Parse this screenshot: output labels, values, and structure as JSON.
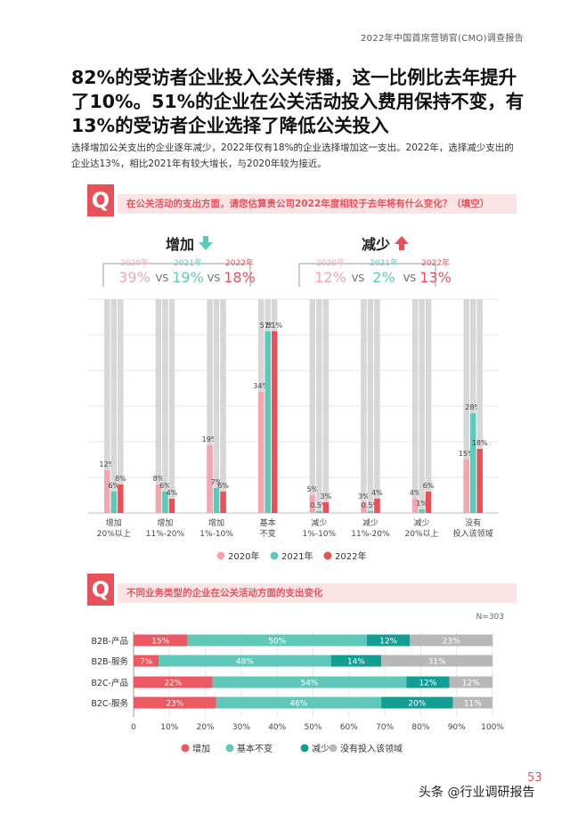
{
  "header": {
    "report_name": "2022年中国首席营销官(CMO)调查报告"
  },
  "headline": "82%的受访者企业投入公关传播，这一比例比去年提升了10%。51%的企业在公关活动投入费用保持不变，有13%的受访者企业选择了降低公关投入",
  "intro": "选择增加公关支出的企业逐年减少，2022年仅有18%的企业选择增加这一支出。2022年，选择减少支出的企业达13%，相比2021年有较大增长，与2020年较为接近。",
  "question1": {
    "badge": "Q",
    "text": "在公关活动的支出方面，请您估算贵公司2022年度相较于去年将有什么变化？（填空）"
  },
  "question2": {
    "badge": "Q",
    "text": "不同业务类型的企业在公关活动方面的支出变化"
  },
  "colors": {
    "y2020": "#f4a5ad",
    "y2021": "#5dc9bb",
    "y2022": "#e9515a",
    "track": "#d7d7d7",
    "accent": "#e9515a",
    "s_increase": "#ec5962",
    "s_same": "#5fc8b8",
    "s_decrease": "#139e94",
    "s_none": "#b8b8b8",
    "arrow_down": "#5dc9bb",
    "arrow_up": "#e9515a"
  },
  "summary": {
    "increase": {
      "title": "增加",
      "arrow_icon": "arrow-down-icon",
      "years": [
        "2020年",
        "2021年",
        "2022年"
      ],
      "values": [
        "39%",
        "19%",
        "18%"
      ],
      "vs": "VS"
    },
    "decrease": {
      "title": "减少",
      "arrow_icon": "arrow-up-icon",
      "years": [
        "2020年",
        "2021年",
        "2022年"
      ],
      "values": [
        "12%",
        "2%",
        "13%"
      ],
      "vs": "VS"
    }
  },
  "chart_data": [
    {
      "type": "bar",
      "categories": [
        [
          "增加",
          "20%以上"
        ],
        [
          "增加",
          "11%-20%"
        ],
        [
          "增加",
          "1%-10%"
        ],
        [
          "基本",
          "不变"
        ],
        [
          "减少",
          "1%-10%"
        ],
        [
          "减少",
          "11%-20%"
        ],
        [
          "减少",
          "20%以上"
        ],
        [
          "没有",
          "投入该领域"
        ]
      ],
      "series": [
        {
          "name": "2020年",
          "values": [
            12,
            8,
            19,
            34,
            5,
            3,
            4,
            15
          ],
          "labels": [
            "12%",
            "8%",
            "19%",
            "34%",
            "5%",
            "3%",
            "4%",
            "15%"
          ]
        },
        {
          "name": "2021年",
          "values": [
            6,
            6,
            7,
            51,
            0.5,
            0.5,
            1,
            28
          ],
          "labels": [
            "6%",
            "6%",
            "7%",
            "51%",
            "0.5%",
            "0.5%",
            "1%",
            "28%"
          ]
        },
        {
          "name": "2022年",
          "values": [
            8,
            4,
            6,
            51,
            3,
            4,
            6,
            18
          ],
          "labels": [
            "8%",
            "4%",
            "6%",
            "51%",
            "3%",
            "4%",
            "6%",
            "18%"
          ]
        }
      ],
      "ylim": [
        0,
        60
      ],
      "grid": true,
      "legend": "bottom"
    },
    {
      "type": "bar",
      "orientation": "horizontal",
      "stacked": true,
      "note": "N=303",
      "categories": [
        "B2B-产品",
        "B2B-服务",
        "B2C-产品",
        "B2C-服务"
      ],
      "series": [
        {
          "name": "增加",
          "values": [
            15,
            7,
            22,
            23
          ]
        },
        {
          "name": "基本不变",
          "values": [
            50,
            48,
            54,
            46
          ]
        },
        {
          "name": "减少",
          "values": [
            12,
            14,
            12,
            20
          ]
        },
        {
          "name": "没有投入该领域",
          "values": [
            23,
            31,
            12,
            11
          ]
        }
      ],
      "xticks": [
        "0",
        "10%",
        "20%",
        "30%",
        "40%",
        "50%",
        "60%",
        "70%",
        "80%",
        "90%",
        "100%"
      ],
      "xlim": [
        0,
        100
      ],
      "legend": "bottom"
    }
  ],
  "footer": {
    "watermark": "头条 @行业调研报告",
    "page": "53"
  }
}
